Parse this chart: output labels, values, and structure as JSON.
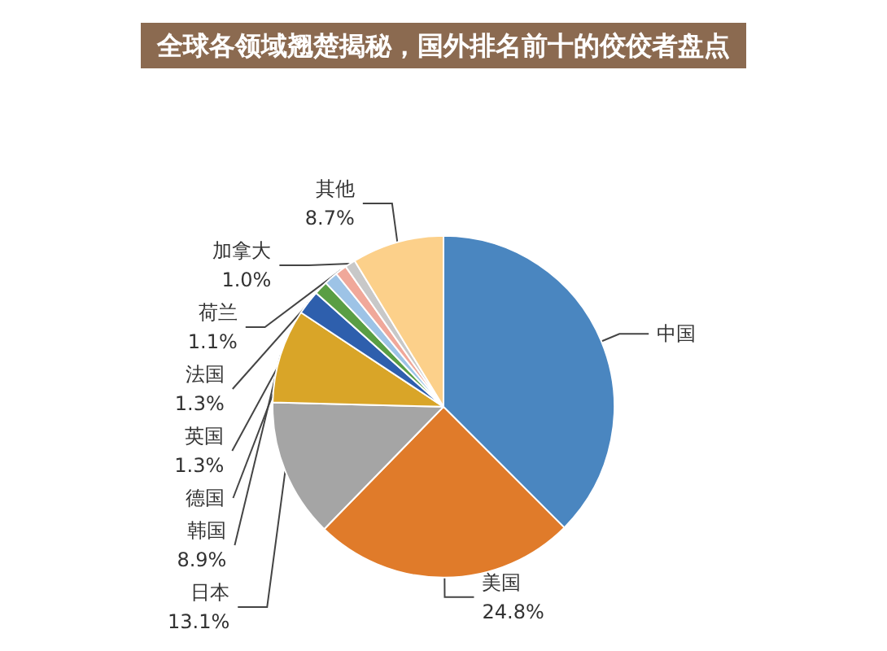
{
  "chart_data": {
    "type": "pie",
    "title": "全球各领域翘楚揭秘，国外排名前十的佼佼者盘点",
    "categories": [
      "中国",
      "美国",
      "日本",
      "韩国",
      "德国",
      "英国",
      "法国",
      "荷兰",
      "加拿大",
      "其他"
    ],
    "values": [
      37.5,
      24.8,
      13.1,
      8.9,
      2.3,
      1.3,
      1.3,
      1.1,
      1.0,
      8.7
    ],
    "value_labels": [
      null,
      "24.8%",
      "13.1%",
      "8.9%",
      null,
      "1.3%",
      "1.3%",
      "1.1%",
      "1.0%",
      "8.7%"
    ],
    "colors": [
      "#4a86c0",
      "#e07b2a",
      "#a5a5a5",
      "#d9a528",
      "#2e5fad",
      "#5a9e44",
      "#9dc3e6",
      "#f0a89a",
      "#c8c8c8",
      "#fcd08a"
    ],
    "legend": false
  }
}
